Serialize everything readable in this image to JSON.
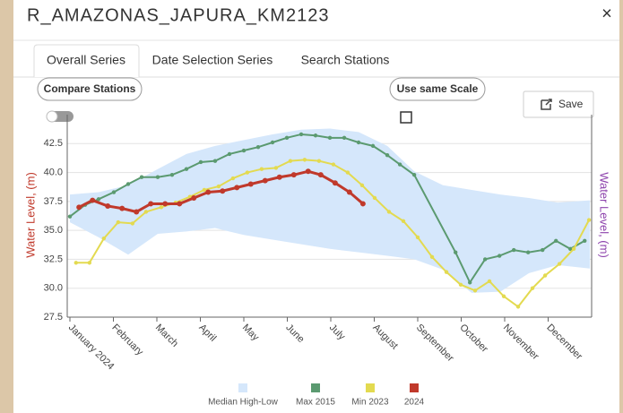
{
  "header": {
    "title": "R_AMAZONAS_JAPURA_KM2123",
    "close": "×"
  },
  "tabs": [
    "Overall Series",
    "Date Selection Series",
    "Search Stations"
  ],
  "buttons": {
    "compare": "Compare Stations",
    "scale": "Use same Scale",
    "save": "Save"
  },
  "chart_data": {
    "type": "line",
    "ylabel": "Water Level, (m)",
    "y2label": "Water Level, (m)",
    "xlim": [
      0,
      12
    ],
    "xticks": [
      {
        "value": 0,
        "label": "January 2024"
      },
      {
        "value": 1,
        "label": "February"
      },
      {
        "value": 2,
        "label": "March"
      },
      {
        "value": 3,
        "label": "April"
      },
      {
        "value": 4,
        "label": "May"
      },
      {
        "value": 5,
        "label": "June"
      },
      {
        "value": 6,
        "label": "July"
      },
      {
        "value": 7,
        "label": "August"
      },
      {
        "value": 8,
        "label": "September"
      },
      {
        "value": 9,
        "label": "October"
      },
      {
        "value": 10,
        "label": "November"
      },
      {
        "value": 11,
        "label": "December"
      }
    ],
    "ylim": [
      27.5,
      45
    ],
    "yticks": [
      27.5,
      {
        "value": 30,
        "label": "30.0"
      },
      32.5,
      {
        "value": 35,
        "label": "35.0"
      },
      37.5,
      {
        "value": 40,
        "label": "40.0"
      },
      42.5
    ],
    "grid": true,
    "legend": "bottom",
    "series": [
      {
        "name": "Median High-Low",
        "type": "band",
        "color": "#d5e7fb",
        "x": [
          0,
          0.66,
          1.34,
          2.02,
          2.68,
          3.34,
          4.0,
          4.66,
          5.32,
          5.98,
          6.64,
          7.3,
          7.92,
          8.58,
          9.24,
          9.9,
          10.56,
          11.22,
          11.96
        ],
        "high": [
          38.1,
          38.3,
          38.9,
          40.3,
          41.6,
          42.3,
          42.8,
          43.3,
          43.7,
          43.8,
          43.5,
          42.3,
          40.1,
          38.9,
          38.5,
          38.1,
          37.8,
          37.4,
          37.6
        ],
        "low": [
          35.7,
          34.4,
          32.9,
          34.7,
          34.9,
          35.2,
          34.6,
          34.2,
          33.8,
          33.4,
          33.1,
          32.8,
          32.5,
          31.6,
          29.6,
          29.7,
          31.3,
          32.0,
          31.7
        ]
      },
      {
        "name": "Max 2015",
        "color": "#5b9a70",
        "x": [
          0,
          0.35,
          0.66,
          1.01,
          1.34,
          1.65,
          2.02,
          2.35,
          2.68,
          3.01,
          3.34,
          3.67,
          4.0,
          4.33,
          4.66,
          4.99,
          5.32,
          5.65,
          5.98,
          6.31,
          6.64,
          6.97,
          7.3,
          7.59,
          7.92,
          8.87,
          9.2,
          9.55,
          9.88,
          10.21,
          10.54,
          10.87,
          11.18,
          11.51,
          11.84
        ],
        "values": [
          36.2,
          37.2,
          37.7,
          38.3,
          39.0,
          39.6,
          39.6,
          39.8,
          40.3,
          40.9,
          41.0,
          41.6,
          41.9,
          42.2,
          42.6,
          43.0,
          43.3,
          43.2,
          43.0,
          43.0,
          42.6,
          42.3,
          41.5,
          40.7,
          39.8,
          33.1,
          30.5,
          32.5,
          32.8,
          33.3,
          33.1,
          33.3,
          34.1,
          33.4,
          34.1
        ]
      },
      {
        "name": "Min 2023",
        "color": "#e3da50",
        "x": [
          0.14,
          0.45,
          0.78,
          1.11,
          1.44,
          1.75,
          2.1,
          2.43,
          2.76,
          3.09,
          3.42,
          3.75,
          4.08,
          4.41,
          4.74,
          5.07,
          5.4,
          5.73,
          6.06,
          6.39,
          6.72,
          7.01,
          7.34,
          7.67,
          8.0,
          8.33,
          8.66,
          8.99,
          9.32,
          9.65,
          9.98,
          10.31,
          10.64,
          10.93,
          11.26,
          11.59,
          11.94
        ],
        "values": [
          32.2,
          32.2,
          34.3,
          35.7,
          35.6,
          36.6,
          37.0,
          37.4,
          37.9,
          38.5,
          38.8,
          39.5,
          40.0,
          40.3,
          40.4,
          41.0,
          41.1,
          41.0,
          40.7,
          40.0,
          38.9,
          37.8,
          36.6,
          35.8,
          34.4,
          32.7,
          31.4,
          30.3,
          29.8,
          30.6,
          29.3,
          28.4,
          30.0,
          31.1,
          32.1,
          33.4,
          35.9
        ]
      },
      {
        "name": "2024",
        "color": "#c0392b",
        "x": [
          0.21,
          0.52,
          0.87,
          1.2,
          1.53,
          1.86,
          2.19,
          2.52,
          2.85,
          3.18,
          3.51,
          3.84,
          4.16,
          4.49,
          4.82,
          5.15,
          5.48,
          5.77,
          6.1,
          6.43,
          6.74
        ],
        "values": [
          37.0,
          37.6,
          37.1,
          36.9,
          36.6,
          37.3,
          37.3,
          37.3,
          37.8,
          38.3,
          38.4,
          38.7,
          39.0,
          39.3,
          39.6,
          39.8,
          40.1,
          39.8,
          39.1,
          38.3,
          37.3
        ]
      }
    ]
  }
}
